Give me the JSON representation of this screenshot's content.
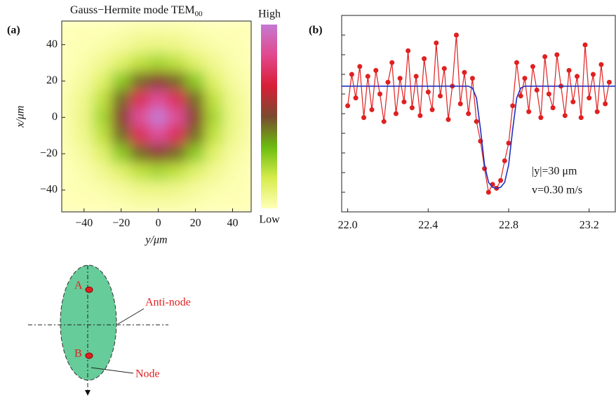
{
  "chart_data": [
    {
      "type": "heatmap",
      "panel": "(a)",
      "title": "Gauss−Hermite mode TEM",
      "title_subscript": "00",
      "xlabel": "y/μm",
      "ylabel": "x/μm",
      "x": [
        -50,
        -40,
        -30,
        -20,
        -10,
        0,
        10,
        20,
        30,
        40,
        50
      ],
      "y": [
        50,
        40,
        30,
        20,
        10,
        0,
        -10,
        -20,
        -30,
        -40,
        -50
      ],
      "values": [
        [
          0,
          0,
          0,
          0.01,
          0.02,
          0.02,
          0.02,
          0.01,
          0,
          0,
          0
        ],
        [
          0,
          0.01,
          0.02,
          0.04,
          0.07,
          0.08,
          0.07,
          0.04,
          0.02,
          0.01,
          0
        ],
        [
          0,
          0.02,
          0.06,
          0.12,
          0.2,
          0.24,
          0.2,
          0.12,
          0.06,
          0.02,
          0
        ],
        [
          0.01,
          0.04,
          0.12,
          0.28,
          0.45,
          0.53,
          0.45,
          0.28,
          0.12,
          0.04,
          0.01
        ],
        [
          0.02,
          0.07,
          0.2,
          0.45,
          0.73,
          0.85,
          0.73,
          0.45,
          0.2,
          0.07,
          0.02
        ],
        [
          0.02,
          0.08,
          0.24,
          0.53,
          0.85,
          1,
          0.85,
          0.53,
          0.24,
          0.08,
          0.02
        ],
        [
          0.02,
          0.07,
          0.2,
          0.45,
          0.73,
          0.85,
          0.73,
          0.45,
          0.2,
          0.07,
          0.02
        ],
        [
          0.01,
          0.04,
          0.12,
          0.28,
          0.45,
          0.53,
          0.45,
          0.28,
          0.12,
          0.04,
          0.01
        ],
        [
          0,
          0.02,
          0.06,
          0.12,
          0.2,
          0.24,
          0.2,
          0.12,
          0.06,
          0.02,
          0
        ],
        [
          0,
          0.01,
          0.02,
          0.04,
          0.07,
          0.08,
          0.07,
          0.04,
          0.02,
          0.01,
          0
        ],
        [
          0,
          0,
          0,
          0.01,
          0.02,
          0.02,
          0.02,
          0.01,
          0,
          0,
          0
        ]
      ],
      "xlim": [
        -52,
        50
      ],
      "ylim": [
        -52,
        53
      ],
      "xticks": [
        {
          "value": -40,
          "label": "−40"
        },
        {
          "value": -20,
          "label": "−20"
        },
        0,
        20,
        40
      ],
      "yticks": [
        {
          "value": -40,
          "label": "−40"
        },
        {
          "value": -20,
          "label": "−20"
        },
        0,
        20,
        40
      ],
      "clim": [
        0,
        1
      ],
      "colormap": [
        "#ffffb8",
        "#d6ec4c",
        "#6cbc10",
        "#7a4a30",
        "#d81e36",
        "#e2488e",
        "#c47ad2"
      ],
      "colorbar_high": "High",
      "colorbar_low": "Low"
    },
    {
      "type": "line",
      "panel": "(b)",
      "xlim": [
        21.97,
        23.33
      ],
      "ylim": [
        0,
        10
      ],
      "xticks": [
        {
          "value": 22.0,
          "label": "22.0"
        },
        22.4,
        22.8,
        23.2
      ],
      "yticks": [
        1,
        2,
        3,
        4,
        5,
        6,
        7,
        8,
        9
      ],
      "series": [
        {
          "color": "#e02020",
          "markers": true,
          "x": [
            22.0,
            22.02,
            22.04,
            22.06,
            22.08,
            22.1,
            22.12,
            22.14,
            22.16,
            22.18,
            22.2,
            22.22,
            22.24,
            22.26,
            22.28,
            22.3,
            22.32,
            22.34,
            22.36,
            22.38,
            22.4,
            22.42,
            22.44,
            22.46,
            22.48,
            22.5,
            22.52,
            22.54,
            22.56,
            22.58,
            22.6,
            22.62,
            22.64,
            22.66,
            22.68,
            22.7,
            22.72,
            22.74,
            22.76,
            22.78,
            22.8,
            22.82,
            22.84,
            22.86,
            22.88,
            22.9,
            22.92,
            22.94,
            22.96,
            22.98,
            23.0,
            23.02,
            23.04,
            23.06,
            23.08,
            23.1,
            23.12,
            23.14,
            23.16,
            23.18,
            23.2,
            23.22,
            23.24,
            23.26,
            23.28,
            23.3
          ],
          "values": [
            5.4,
            7.0,
            5.8,
            7.4,
            4.8,
            6.9,
            5.2,
            7.2,
            6.0,
            4.6,
            6.6,
            7.6,
            5.0,
            6.8,
            5.6,
            8.2,
            5.3,
            6.9,
            4.9,
            7.8,
            6.1,
            5.2,
            8.6,
            5.9,
            7.3,
            4.7,
            6.4,
            9.0,
            5.5,
            7.1,
            5.0,
            6.8,
            4.6,
            3.6,
            2.2,
            1.0,
            1.4,
            1.2,
            1.6,
            2.6,
            3.5,
            5.4,
            7.6,
            5.9,
            6.8,
            5.1,
            7.4,
            6.2,
            4.8,
            7.9,
            6.0,
            5.3,
            8.0,
            6.4,
            4.9,
            7.2,
            5.6,
            6.9,
            4.8,
            8.5,
            5.8,
            7.0,
            5.1,
            7.5,
            5.5,
            6.6
          ]
        },
        {
          "color": "#2030c0",
          "markers": false,
          "x": [
            21.97,
            22.6,
            22.62,
            22.64,
            22.66,
            22.68,
            22.7,
            22.72,
            22.74,
            22.76,
            22.78,
            22.8,
            22.82,
            22.84,
            22.86,
            22.88,
            23.33
          ],
          "values": [
            6.4,
            6.4,
            6.3,
            5.8,
            4.2,
            2.4,
            1.5,
            1.25,
            1.2,
            1.25,
            1.5,
            2.4,
            4.2,
            5.8,
            6.3,
            6.4,
            6.4
          ]
        }
      ],
      "annotations": [
        "|y|=30 μm",
        "v=0.30 m/s"
      ]
    }
  ],
  "diagram": {
    "a": "A",
    "b": "B",
    "anti_node": "Anti-node",
    "node": "Node"
  }
}
